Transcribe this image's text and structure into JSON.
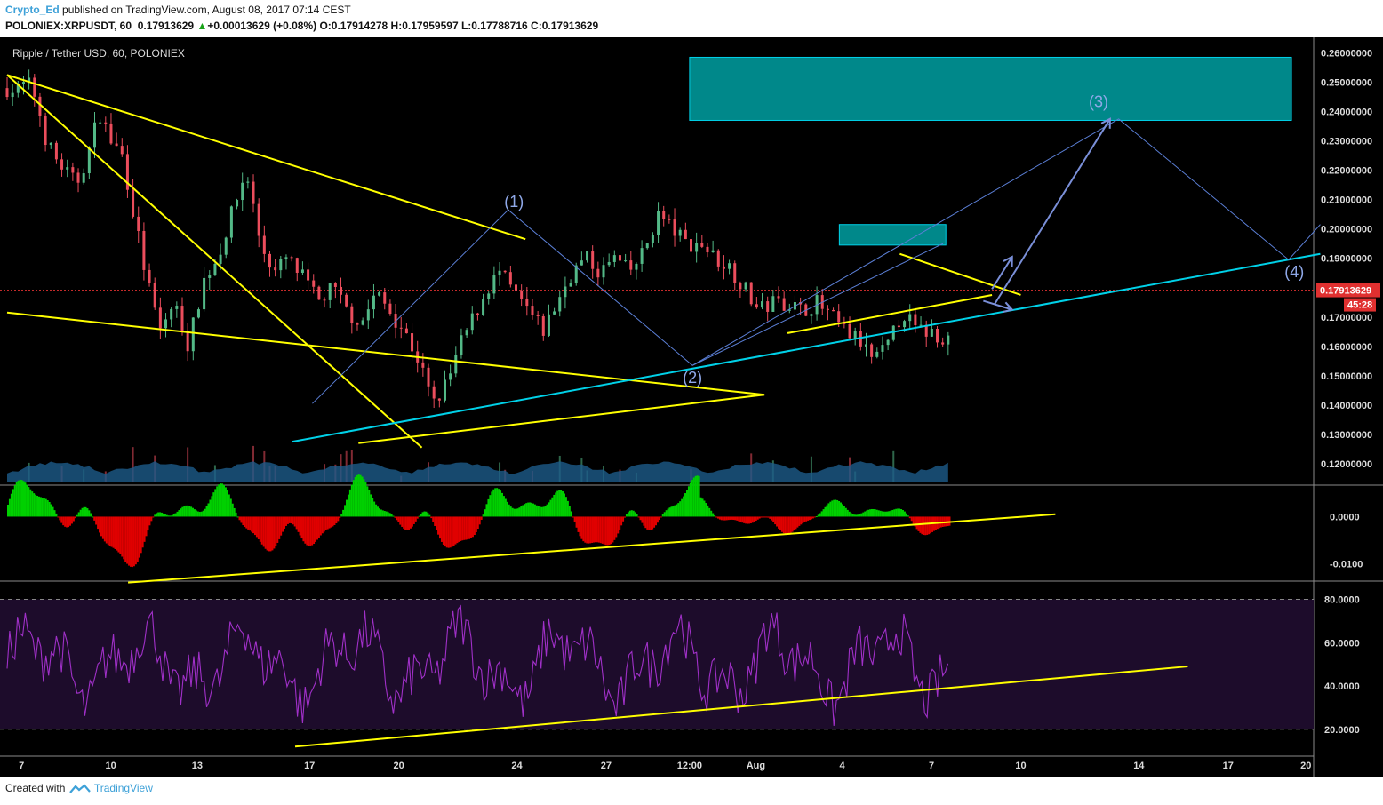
{
  "header": {
    "author": "Crypto_Ed",
    "published_text": "published on TradingView.com, August 08, 2017 07:14 CEST",
    "symbol": "POLONIEX:XRPUSDT, 60",
    "last_price": "0.17913629",
    "change_arrow": "▲",
    "change": "+0.00013629 (+0.08%)",
    "o_label": "O:",
    "o_value": "0.17914278",
    "h_label": "H:",
    "h_value": "0.17959597",
    "l_label": "L:",
    "l_value": "0.17788716",
    "c_label": "C:",
    "c_value": "0.17913629"
  },
  "footer": {
    "created_with": "Created with",
    "brand": "TradingView"
  },
  "colors": {
    "background": "#000000",
    "bull_candle": "#53b987",
    "bear_candle": "#eb4d5c",
    "trendline": "#ffff00",
    "support_line": "#00d1e8",
    "target_box": "#00888a",
    "wave_path": "#5b7fd6",
    "rsi_line": "#a030c8",
    "rsi_band": "#1d0c2b",
    "macd_pos": "#00d000",
    "macd_neg": "#e00000",
    "price_label_bg": "#e03030"
  },
  "chart_data": [
    {
      "type": "candlestick",
      "title": "Ripple / Tether USD, 60, POLONIEX",
      "ylim": [
        0.113,
        0.265
      ],
      "yticks": [
        "0.26000000",
        "0.25000000",
        "0.24000000",
        "0.23000000",
        "0.22000000",
        "0.21000000",
        "0.20000000",
        "0.19000000",
        "0.17000000",
        "0.16000000",
        "0.15000000",
        "0.14000000",
        "0.13000000",
        "0.12000000"
      ],
      "ytick_values": [
        0.26,
        0.25,
        0.24,
        0.23,
        0.22,
        0.21,
        0.2,
        0.19,
        0.17,
        0.16,
        0.15,
        0.14,
        0.13,
        0.12
      ],
      "x_ticks": [
        "7",
        "10",
        "13",
        "17",
        "20",
        "24",
        "27",
        "12:00",
        "Aug",
        "4",
        "7",
        "10",
        "14",
        "17",
        "20"
      ],
      "last_price_label": "0.17913629",
      "countdown_label": "45:28",
      "price_path_days": [
        0,
        0.3,
        0.7,
        1,
        1.3,
        1.6,
        2,
        2.4,
        2.8,
        3.2,
        3.6,
        4,
        4.4,
        4.8,
        5.3,
        5.8,
        6.3,
        6.8,
        7.3,
        7.8,
        8.3,
        8.8,
        9.3,
        9.7,
        10.3,
        10.8,
        11.3,
        11.8,
        12.3,
        12.8,
        13.3,
        13.8,
        14.3,
        14.8,
        15.3,
        15.8,
        16.3,
        16.7,
        17.1,
        17.6,
        18.1,
        18.6,
        19.1,
        19.6,
        20.1,
        20.6,
        21.1,
        21.6,
        22.1,
        22.6,
        23.1,
        23.6,
        24.1,
        24.6,
        25.1,
        25.6,
        26.1,
        26.6,
        27.1,
        27.6,
        28.1,
        28.6,
        29.1,
        29.6,
        30.1,
        30.6,
        31.1,
        31.6,
        32.1,
        32.6,
        33.1,
        33.6,
        34.1,
        34.6,
        35.1,
        35.6,
        36.1,
        36.6,
        37.1,
        37.6,
        38.1,
        38.6,
        39.1,
        39.6,
        40.1,
        40.6,
        41.1,
        41.6,
        42.1,
        42.6,
        43.1,
        43.6,
        44.1,
        44.6,
        45.1,
        45.6
      ],
      "price_path": [
        0.248,
        0.247,
        0.25,
        0.245,
        0.232,
        0.225,
        0.22,
        0.215,
        0.225,
        0.24,
        0.23,
        0.225,
        0.205,
        0.185,
        0.165,
        0.175,
        0.16,
        0.182,
        0.19,
        0.205,
        0.22,
        0.195,
        0.185,
        0.19,
        0.183,
        0.175,
        0.18,
        0.172,
        0.168,
        0.178,
        0.172,
        0.165,
        0.155,
        0.14,
        0.148,
        0.162,
        0.172,
        0.18,
        0.185,
        0.178,
        0.172,
        0.165,
        0.175,
        0.185,
        0.19,
        0.185,
        0.19,
        0.185,
        0.192,
        0.205,
        0.2,
        0.195,
        0.195,
        0.19,
        0.187,
        0.18,
        0.172,
        0.175,
        0.175,
        0.172,
        0.175,
        0.17,
        0.165,
        0.162,
        0.155,
        0.16,
        0.172,
        0.165,
        0.165,
        0.163,
        0.162,
        0.165,
        0.17,
        0.182,
        0.18,
        0.178,
        0.172,
        0.175,
        0.176,
        0.178,
        0.174,
        0.172,
        0.176,
        0.18,
        0.19,
        0.188,
        0.185,
        0.183,
        0.182,
        0.18,
        0.18,
        0.179,
        0.179,
        0.179,
        0.179,
        0.179
      ],
      "annotations": {
        "wave_labels": [
          {
            "text": "(1)",
            "day": 17.6,
            "price": 0.2075
          },
          {
            "text": "(2)",
            "day": 23.8,
            "price": 0.1475
          },
          {
            "text": "(3)",
            "day": 37.9,
            "price": 0.2415
          },
          {
            "text": "(4)",
            "day": 44.7,
            "price": 0.1835
          }
        ],
        "target_zones": [
          {
            "day_from": 23.7,
            "day_to": 44.6,
            "price_from": 0.237,
            "price_to": 0.2585
          },
          {
            "day_from": 28.9,
            "day_to": 32.6,
            "price_from": 0.1945,
            "price_to": 0.2015
          }
        ],
        "trendlines_yellow": [
          [
            [
              0,
              0.2525
            ],
            [
              14.4,
              0.1255
            ]
          ],
          [
            [
              0,
              0.1715
            ],
            [
              26.3,
              0.1435
            ]
          ],
          [
            [
              0,
              0.2525
            ],
            [
              18.0,
              0.1965
            ]
          ],
          [
            [
              12.2,
              0.127
            ],
            [
              26.3,
              0.1435
            ]
          ],
          [
            [
              27.1,
              0.1645
            ],
            [
              34.2,
              0.1775
            ]
          ],
          [
            [
              31.0,
              0.1915
            ],
            [
              35.2,
              0.1775
            ]
          ]
        ],
        "trendlines_cyan": [
          [
            [
              9.9,
              0.1275
            ],
            [
              45.6,
              0.1915
            ]
          ]
        ],
        "wave_path": [
          [
            10.6,
            0.1405
          ],
          [
            17.4,
            0.2065
          ],
          [
            23.8,
            0.1535
          ],
          [
            38.6,
            0.2375
          ],
          [
            44.5,
            0.1895
          ],
          [
            45.6,
            0.2015
          ]
        ],
        "arrows": [
          [
            [
              34.3,
              0.1745
            ],
            [
              38.3,
              0.2375
            ]
          ],
          [
            [
              34.2,
              0.1795
            ],
            [
              34.9,
              0.1905
            ]
          ],
          [
            [
              33.9,
              0.1755
            ],
            [
              34.9,
              0.1725
            ]
          ]
        ],
        "forecast_line": [
          [
            23.8,
            0.1535
          ],
          [
            32.5,
            0.195
          ]
        ]
      }
    },
    {
      "type": "histogram",
      "title": "",
      "yticks": [
        "0.0000",
        "-0.0100"
      ],
      "ytick_values": [
        0,
        -0.01
      ],
      "ylim": [
        -0.0135,
        0.0065
      ],
      "trendline": [
        [
          4.2,
          -0.014
        ],
        [
          36.4,
          0.0005
        ]
      ]
    },
    {
      "type": "line",
      "title": "",
      "yticks": [
        "80.0000",
        "60.0000",
        "40.0000",
        "20.0000"
      ],
      "ytick_values": [
        80,
        60,
        40,
        20
      ],
      "ylim": [
        8,
        88
      ],
      "overbought": 80,
      "oversold": 20,
      "trendline": [
        [
          10.0,
          12
        ],
        [
          41.0,
          49
        ]
      ]
    }
  ]
}
